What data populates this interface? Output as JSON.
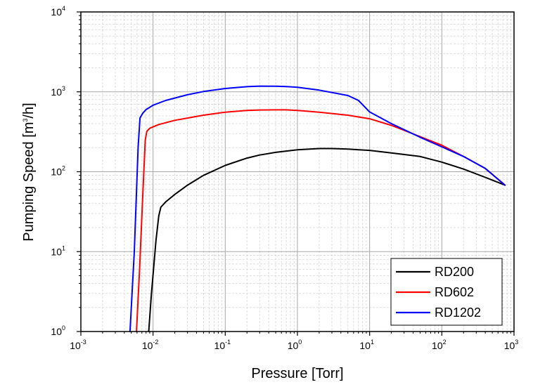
{
  "chart_data": {
    "type": "line",
    "title": "",
    "xlabel": "Pressure [Torr]",
    "ylabel_base": "Pumping Speed [m",
    "ylabel_sup": "3",
    "ylabel_tail": "/h]",
    "xscale": "log",
    "yscale": "log",
    "xlim": [
      0.001,
      1000
    ],
    "ylim": [
      1,
      10000
    ],
    "grid": true,
    "legend_position": "bottom-right",
    "x_ticks": [
      {
        "base": "10",
        "exp": "-3"
      },
      {
        "base": "10",
        "exp": "-2"
      },
      {
        "base": "10",
        "exp": "-1"
      },
      {
        "base": "10",
        "exp": "0"
      },
      {
        "base": "10",
        "exp": "1"
      },
      {
        "base": "10",
        "exp": "2"
      },
      {
        "base": "10",
        "exp": "3"
      }
    ],
    "y_ticks": [
      {
        "base": "10",
        "exp": "0"
      },
      {
        "base": "10",
        "exp": "1"
      },
      {
        "base": "10",
        "exp": "2"
      },
      {
        "base": "10",
        "exp": "3"
      },
      {
        "base": "10",
        "exp": "4"
      }
    ],
    "series": [
      {
        "name": "RD200",
        "color": "#000000",
        "x": [
          0.0087,
          0.0095,
          0.011,
          0.012,
          0.0128,
          0.015,
          0.02,
          0.03,
          0.05,
          0.1,
          0.2,
          0.3,
          0.5,
          1,
          2,
          3,
          5,
          10,
          20,
          50,
          100,
          200,
          400,
          750
        ],
        "y": [
          1,
          3,
          14,
          28,
          36,
          42,
          52,
          68,
          90,
          120,
          148,
          162,
          175,
          188,
          195,
          195,
          192,
          185,
          172,
          155,
          132,
          108,
          85,
          68
        ]
      },
      {
        "name": "RD602",
        "color": "#ff0000",
        "x": [
          0.0059,
          0.0065,
          0.0072,
          0.0078,
          0.0082,
          0.009,
          0.012,
          0.02,
          0.05,
          0.1,
          0.2,
          0.3,
          0.5,
          0.7,
          1,
          2,
          5,
          10,
          20,
          50,
          100,
          200,
          400,
          750
        ],
        "y": [
          1,
          6,
          50,
          250,
          320,
          350,
          390,
          440,
          510,
          555,
          585,
          592,
          595,
          595,
          585,
          555,
          510,
          460,
          380,
          275,
          215,
          155,
          110,
          68
        ]
      },
      {
        "name": "RD1202",
        "color": "#0000ff",
        "x": [
          0.0048,
          0.0055,
          0.0062,
          0.0066,
          0.0072,
          0.008,
          0.01,
          0.015,
          0.03,
          0.05,
          0.1,
          0.2,
          0.3,
          0.5,
          0.7,
          1,
          2,
          5,
          7,
          10,
          20,
          50,
          100,
          200,
          400,
          750
        ],
        "y": [
          1,
          10,
          200,
          470,
          540,
          600,
          680,
          780,
          920,
          1010,
          1100,
          1160,
          1180,
          1175,
          1165,
          1140,
          1050,
          900,
          780,
          560,
          400,
          270,
          205,
          155,
          110,
          68
        ]
      }
    ]
  }
}
